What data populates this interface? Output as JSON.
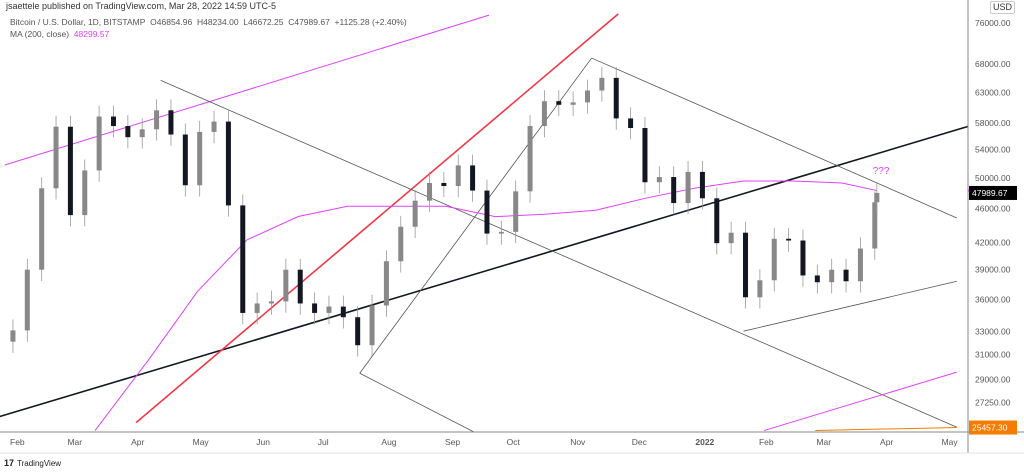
{
  "header": {
    "published": "jsaettele published on TradingView.com, Mar 28, 2022 14:59 UTC-5",
    "symbol": "Bitcoin / U.S. Dollar, 1D, BITSTAMP",
    "open": "O46854.96",
    "high": "H48234.00",
    "low": "L46672.25",
    "close": "C47989.67",
    "change": "+1125.28 (+2.40%)",
    "ma_label": "MA (200, close)",
    "ma_value": "48299.57"
  },
  "footer": {
    "brand": "TradingView",
    "logo_mark": "17"
  },
  "colors": {
    "ma": "#e040fb",
    "red_line": "#f23645",
    "black_line": "#131722",
    "orange": "#f57c00",
    "candle": "#131722"
  },
  "chart_data": {
    "type": "candlestick",
    "scale": "log",
    "currency": "USD",
    "ylim": [
      24900,
      77000
    ],
    "xlim": [
      "2021-01-26",
      "2022-05-31"
    ],
    "yticks": [
      "76000.00",
      "68000.00",
      "63000.00",
      "58000.00",
      "54000.00",
      "50000.00",
      "46000.00",
      "42000.00",
      "39000.00",
      "36000.00",
      "33000.00",
      "31000.00",
      "29000.00",
      "27250.00"
    ],
    "xticks": [
      {
        "label": "Feb",
        "date": "2021-02-01"
      },
      {
        "label": "Mar",
        "date": "2021-03-01"
      },
      {
        "label": "Apr",
        "date": "2021-04-01"
      },
      {
        "label": "May",
        "date": "2021-05-01"
      },
      {
        "label": "Jun",
        "date": "2021-06-01"
      },
      {
        "label": "Jul",
        "date": "2021-07-01"
      },
      {
        "label": "Aug",
        "date": "2021-08-01"
      },
      {
        "label": "Sep",
        "date": "2021-09-01"
      },
      {
        "label": "Oct",
        "date": "2021-10-01"
      },
      {
        "label": "Nov",
        "date": "2021-11-01"
      },
      {
        "label": "Dec",
        "date": "2021-12-01"
      },
      {
        "label": "2022",
        "date": "2022-01-01"
      },
      {
        "label": "Feb",
        "date": "2022-02-01"
      },
      {
        "label": "Mar",
        "date": "2022-03-01"
      },
      {
        "label": "Apr",
        "date": "2022-04-01"
      },
      {
        "label": "May",
        "date": "2022-05-01"
      }
    ],
    "closes": [
      [
        "2021-01-31",
        33100
      ],
      [
        "2021-02-07",
        39000
      ],
      [
        "2021-02-14",
        48600
      ],
      [
        "2021-02-21",
        57400
      ],
      [
        "2021-02-28",
        45200
      ],
      [
        "2021-03-07",
        51000
      ],
      [
        "2021-03-14",
        59000
      ],
      [
        "2021-03-21",
        57500
      ],
      [
        "2021-03-28",
        55800
      ],
      [
        "2021-04-04",
        57000
      ],
      [
        "2021-04-11",
        60000
      ],
      [
        "2021-04-18",
        56200
      ],
      [
        "2021-04-25",
        49000
      ],
      [
        "2021-05-02",
        56600
      ],
      [
        "2021-05-09",
        58200
      ],
      [
        "2021-05-16",
        46400
      ],
      [
        "2021-05-23",
        34700
      ],
      [
        "2021-05-30",
        35600
      ],
      [
        "2021-06-06",
        35800
      ],
      [
        "2021-06-13",
        39000
      ],
      [
        "2021-06-20",
        35600
      ],
      [
        "2021-06-27",
        34700
      ],
      [
        "2021-07-04",
        35300
      ],
      [
        "2021-07-11",
        34300
      ],
      [
        "2021-07-18",
        31800
      ],
      [
        "2021-07-25",
        35400
      ],
      [
        "2021-08-01",
        39900
      ],
      [
        "2021-08-08",
        43800
      ],
      [
        "2021-08-15",
        47000
      ],
      [
        "2021-08-22",
        49300
      ],
      [
        "2021-08-29",
        48900
      ],
      [
        "2021-09-05",
        51700
      ],
      [
        "2021-09-12",
        48300
      ],
      [
        "2021-09-19",
        43000
      ],
      [
        "2021-09-26",
        43200
      ],
      [
        "2021-10-03",
        48200
      ],
      [
        "2021-10-10",
        57500
      ],
      [
        "2021-10-17",
        61500
      ],
      [
        "2021-10-24",
        60900
      ],
      [
        "2021-10-31",
        61300
      ],
      [
        "2021-11-07",
        63300
      ],
      [
        "2021-11-14",
        65500
      ],
      [
        "2021-11-21",
        58700
      ],
      [
        "2021-11-28",
        57200
      ],
      [
        "2021-12-05",
        49400
      ],
      [
        "2021-12-12",
        50100
      ],
      [
        "2021-12-19",
        46700
      ],
      [
        "2021-12-26",
        50800
      ],
      [
        "2022-01-02",
        47300
      ],
      [
        "2022-01-09",
        41900
      ],
      [
        "2022-01-16",
        43100
      ],
      [
        "2022-01-23",
        36200
      ],
      [
        "2022-01-30",
        37900
      ],
      [
        "2022-02-06",
        42400
      ],
      [
        "2022-02-13",
        42200
      ],
      [
        "2022-02-20",
        38400
      ],
      [
        "2022-02-27",
        37700
      ],
      [
        "2022-03-06",
        39000
      ],
      [
        "2022-03-13",
        37800
      ],
      [
        "2022-03-20",
        41300
      ],
      [
        "2022-03-27",
        46800
      ],
      [
        "2022-03-28",
        47989.67
      ]
    ],
    "ma200": [
      [
        "2021-03-12",
        25250
      ],
      [
        "2021-04-07",
        30550
      ],
      [
        "2021-05-01",
        36800
      ],
      [
        "2021-05-25",
        42270
      ],
      [
        "2021-06-19",
        45030
      ],
      [
        "2021-07-13",
        46300
      ],
      [
        "2021-08-06",
        46300
      ],
      [
        "2021-08-30",
        46300
      ],
      [
        "2021-09-23",
        45020
      ],
      [
        "2021-10-17",
        45300
      ],
      [
        "2021-11-11",
        45800
      ],
      [
        "2021-12-05",
        47300
      ],
      [
        "2021-12-29",
        48600
      ],
      [
        "2022-01-22",
        49570
      ],
      [
        "2022-02-15",
        49570
      ],
      [
        "2022-03-11",
        49300
      ],
      [
        "2022-03-28",
        48299.57
      ]
    ],
    "trendlines": [
      {
        "style": "black",
        "from": [
          "2021-01-24",
          26200
        ],
        "to": [
          "2022-05-27",
          58950
        ]
      },
      {
        "style": "red",
        "from": [
          "2021-04-01",
          25800
        ],
        "to": [
          "2021-11-22",
          77860
        ]
      },
      {
        "style": "magenta",
        "from": [
          "2021-01-27",
          51760
        ],
        "to": [
          "2021-09-20",
          77600
        ]
      },
      {
        "style": "gray",
        "from": [
          "2021-04-13",
          65050
        ],
        "to": [
          "2022-05-06",
          25480
        ]
      },
      {
        "style": "gray",
        "from": [
          "2021-11-09",
          69100
        ],
        "to": [
          "2022-05-06",
          44850
        ]
      },
      {
        "style": "gray",
        "from": [
          "2021-07-19",
          29480
        ],
        "to": [
          "2021-09-21",
          24560
        ]
      },
      {
        "style": "gray",
        "from": [
          "2021-07-19",
          29480
        ],
        "to": [
          "2021-11-09",
          69100
        ]
      },
      {
        "style": "gray",
        "from": [
          "2022-01-22",
          33030
        ],
        "to": [
          "2022-05-06",
          37800
        ]
      },
      {
        "style": "magenta",
        "from": [
          "2022-02-01",
          25250
        ],
        "to": [
          "2022-05-06",
          29570
        ]
      },
      {
        "style": "orange",
        "from": [
          "2022-02-26",
          25250
        ],
        "to": [
          "2022-05-06",
          25460
        ]
      }
    ],
    "annotation": {
      "text": "???",
      "date": "2022-03-26",
      "price": 50500
    },
    "price_labels": [
      {
        "text": "47989.67",
        "price": 47989.67,
        "kind": "last"
      },
      {
        "text": "25457.30",
        "price": 25457.3,
        "kind": "orange"
      }
    ]
  }
}
